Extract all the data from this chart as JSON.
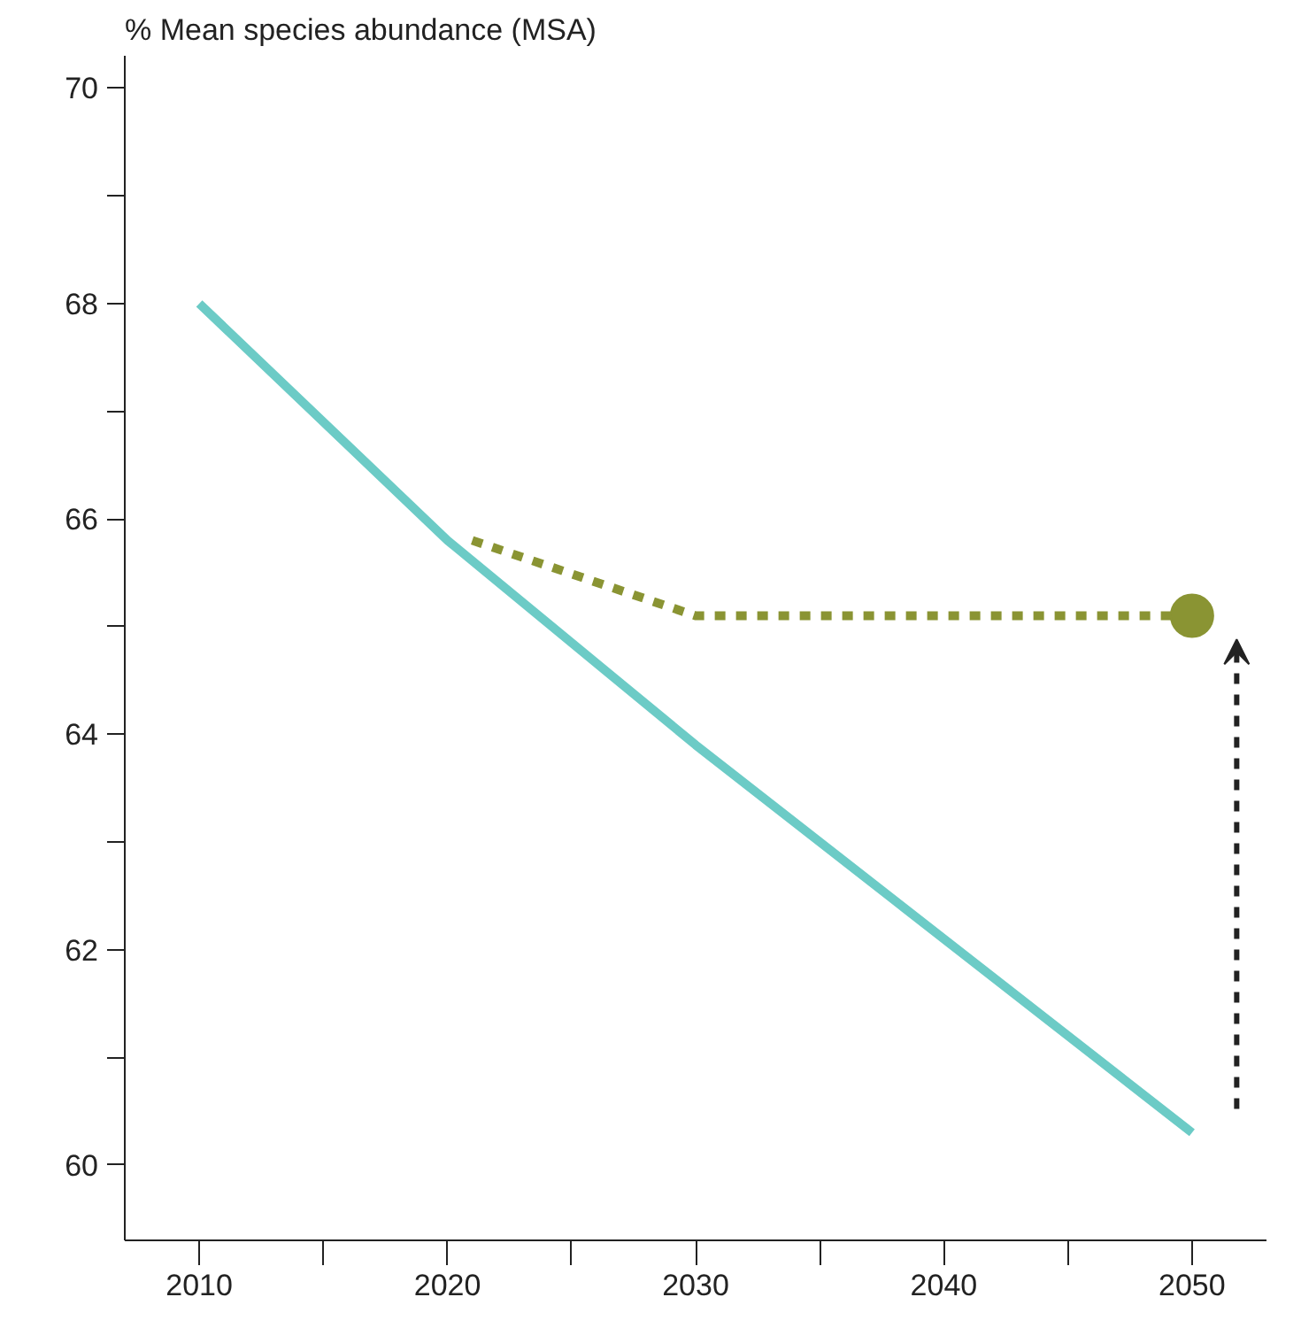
{
  "chart_data": {
    "type": "line",
    "ylabel": "% Mean species abundance (MSA)",
    "xlim": [
      2007,
      2053
    ],
    "ylim": [
      59.3,
      70.3
    ],
    "xticks": [
      2010,
      {
        "value": 2015,
        "label": null
      },
      2020,
      {
        "value": 2025,
        "label": null
      },
      2030,
      {
        "value": 2035,
        "label": null
      },
      2040,
      {
        "value": 2045,
        "label": null
      },
      2050
    ],
    "yticks": [
      60,
      {
        "value": 61,
        "label": null
      },
      62,
      {
        "value": 63,
        "label": null
      },
      64,
      {
        "value": 65,
        "label": null
      },
      66,
      {
        "value": 67,
        "label": null
      },
      68,
      {
        "value": 69,
        "label": null
      },
      70
    ],
    "grid": false,
    "series": [
      {
        "color": "#6ccbc6",
        "x": [
          2010,
          2020,
          2030,
          2050
        ],
        "values": [
          68,
          65.8,
          63.9,
          60.3
        ],
        "line_style": "solid",
        "marker": "none"
      },
      {
        "color": "#8a9433",
        "x": [
          2021,
          2030,
          2050
        ],
        "values": [
          65.8,
          65.1,
          65.1
        ],
        "line_style": "dashed",
        "marker": "none"
      },
      {
        "type": "scatter",
        "color": "#8a9433",
        "x": [
          2050
        ],
        "values": [
          65.1
        ],
        "marker": "circle"
      }
    ]
  }
}
